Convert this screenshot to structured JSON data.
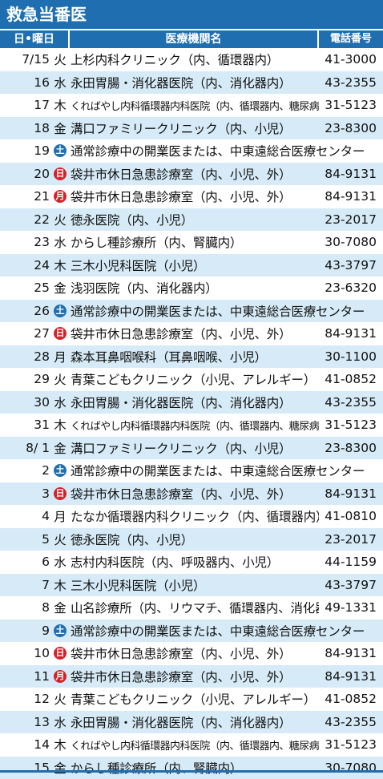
{
  "title": "救急当番医",
  "headers": {
    "date": "日•曜日",
    "institution": "医療機関名",
    "tel": "電話番号"
  },
  "rows": [
    {
      "date": "7/15",
      "day": "火",
      "dayType": "plain",
      "inst": "上杉内科クリニック（内、循環器内）",
      "tel": "41-3000",
      "alt": false
    },
    {
      "date": "16",
      "day": "水",
      "dayType": "plain",
      "inst": "永田胃腸・消化器医院（内、消化器内）",
      "tel": "43-2355",
      "alt": true
    },
    {
      "date": "17",
      "day": "木",
      "dayType": "plain",
      "inst": "くればやし内科循環器内科医院（内、循環器内、糖尿病内）",
      "tel": "31-5123",
      "alt": false,
      "small": true
    },
    {
      "date": "18",
      "day": "金",
      "dayType": "plain",
      "inst": "溝口ファミリークリニック（内、小児）",
      "tel": "23-8300",
      "alt": true
    },
    {
      "date": "19",
      "day": "土",
      "dayType": "blue",
      "inst": "通常診療中の開業医または、中東遠総合医療センター",
      "tel": "",
      "alt": false
    },
    {
      "date": "20",
      "day": "日",
      "dayType": "red",
      "inst": "袋井市休日急患診療室（内、小児、外）",
      "tel": "84-9131",
      "alt": true
    },
    {
      "date": "21",
      "day": "月",
      "dayType": "red",
      "inst": "袋井市休日急患診療室（内、小児、外）",
      "tel": "84-9131",
      "alt": false
    },
    {
      "date": "22",
      "day": "火",
      "dayType": "plain",
      "inst": "徳永医院（内、小児）",
      "tel": "23-2017",
      "alt": true
    },
    {
      "date": "23",
      "day": "水",
      "dayType": "plain",
      "inst": "からし種診療所（内、腎臓内）",
      "tel": "30-7080",
      "alt": false
    },
    {
      "date": "24",
      "day": "木",
      "dayType": "plain",
      "inst": "三木小児科医院（小児）",
      "tel": "43-3797",
      "alt": true
    },
    {
      "date": "25",
      "day": "金",
      "dayType": "plain",
      "inst": "浅羽医院（内、消化器内）",
      "tel": "23-6320",
      "alt": false
    },
    {
      "date": "26",
      "day": "土",
      "dayType": "blue",
      "inst": "通常診療中の開業医または、中東遠総合医療センター",
      "tel": "",
      "alt": true
    },
    {
      "date": "27",
      "day": "日",
      "dayType": "red",
      "inst": "袋井市休日急患診療室（内、小児、外）",
      "tel": "84-9131",
      "alt": false
    },
    {
      "date": "28",
      "day": "月",
      "dayType": "plain",
      "inst": "森本耳鼻咽喉科（耳鼻咽喉、小児）",
      "tel": "30-1100",
      "alt": true
    },
    {
      "date": "29",
      "day": "火",
      "dayType": "plain",
      "inst": "青葉こどもクリニック（小児、アレルギー）",
      "tel": "41-0852",
      "alt": false
    },
    {
      "date": "30",
      "day": "水",
      "dayType": "plain",
      "inst": "永田胃腸・消化器医院（内、消化器内）",
      "tel": "43-2355",
      "alt": true
    },
    {
      "date": "31",
      "day": "木",
      "dayType": "plain",
      "inst": "くればやし内科循環器内科医院（内、循環器内、糖尿病内）",
      "tel": "31-5123",
      "alt": false,
      "small": true
    },
    {
      "date": "8/ 1",
      "day": "金",
      "dayType": "plain",
      "inst": "溝口ファミリークリニック（内、小児）",
      "tel": "23-8300",
      "alt": true
    },
    {
      "date": "2",
      "day": "土",
      "dayType": "blue",
      "inst": "通常診療中の開業医または、中東遠総合医療センター",
      "tel": "",
      "alt": false
    },
    {
      "date": "3",
      "day": "日",
      "dayType": "red",
      "inst": "袋井市休日急患診療室（内、小児、外）",
      "tel": "84-9131",
      "alt": true
    },
    {
      "date": "4",
      "day": "月",
      "dayType": "plain",
      "inst": "たなか循環器内科クリニック（内、循環器内）",
      "tel": "41-0810",
      "alt": false
    },
    {
      "date": "5",
      "day": "火",
      "dayType": "plain",
      "inst": "徳永医院（内、小児）",
      "tel": "23-2017",
      "alt": true
    },
    {
      "date": "6",
      "day": "水",
      "dayType": "plain",
      "inst": "志村内科医院（内、呼吸器内、小児）",
      "tel": "44-1159",
      "alt": false
    },
    {
      "date": "7",
      "day": "木",
      "dayType": "plain",
      "inst": "三木小児科医院（小児）",
      "tel": "43-3797",
      "alt": true
    },
    {
      "date": "8",
      "day": "金",
      "dayType": "plain",
      "inst": "山名診療所（内、リウマチ、循環器内、消化器内）",
      "tel": "49-1331",
      "alt": false
    },
    {
      "date": "9",
      "day": "土",
      "dayType": "blue",
      "inst": "通常診療中の開業医または、中東遠総合医療センター",
      "tel": "",
      "alt": true
    },
    {
      "date": "10",
      "day": "日",
      "dayType": "red",
      "inst": "袋井市休日急患診療室（内、小児、外）",
      "tel": "84-9131",
      "alt": false
    },
    {
      "date": "11",
      "day": "月",
      "dayType": "red",
      "inst": "袋井市休日急患診療室（内、小児、外）",
      "tel": "84-9131",
      "alt": true
    },
    {
      "date": "12",
      "day": "火",
      "dayType": "plain",
      "inst": "青葉こどもクリニック（小児、アレルギー）",
      "tel": "41-0852",
      "alt": false
    },
    {
      "date": "13",
      "day": "水",
      "dayType": "plain",
      "inst": "永田胃腸・消化器医院（内、消化器内）",
      "tel": "43-2355",
      "alt": true
    },
    {
      "date": "14",
      "day": "木",
      "dayType": "plain",
      "inst": "くればやし内科循環器内科医院（内、循環器内、糖尿病内）",
      "tel": "31-5123",
      "alt": false,
      "small": true
    },
    {
      "date": "15",
      "day": "金",
      "dayType": "plain",
      "inst": "からし種診療所（内、腎臓内）",
      "tel": "30-7080",
      "alt": true
    }
  ],
  "colors": {
    "accent": "#1f6fb0",
    "altRow": "#d6ebf7",
    "holiday": "#d2232a"
  }
}
